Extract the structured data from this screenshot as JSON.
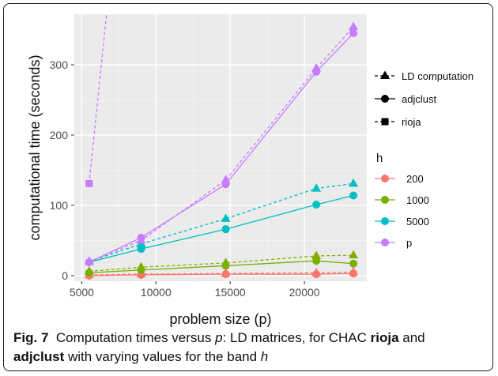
{
  "chart_data": {
    "type": "line",
    "xlabel": "problem size (p)",
    "ylabel": "computational time (seconds)",
    "xlim": [
      4500,
      24200
    ],
    "ylim": [
      -8,
      372
    ],
    "xticks": [
      5000,
      10000,
      15000,
      20000
    ],
    "yticks": [
      0,
      100,
      200,
      300
    ],
    "grid": true,
    "background": "#ebebeb",
    "legend_placement": "right",
    "method_legend": {
      "entries": [
        {
          "label": "LD computation",
          "marker": "triangle",
          "linestyle": "dashed"
        },
        {
          "label": "adjclust",
          "marker": "circle",
          "linestyle": "solid"
        },
        {
          "label": "rioja",
          "marker": "square",
          "linestyle": "dashed"
        }
      ]
    },
    "h_legend": {
      "title": "h",
      "entries": [
        {
          "label": "200",
          "color": "#f8766d"
        },
        {
          "label": "1000",
          "color": "#7cae00"
        },
        {
          "label": "5000",
          "color": "#00bfc4"
        },
        {
          "label": "p",
          "color": "#c77cff"
        }
      ]
    },
    "series": [
      {
        "h": "200",
        "method": "LD computation",
        "x": [
          5500,
          9000,
          14700,
          20800,
          23300
        ],
        "y": [
          1,
          2,
          3,
          4,
          5
        ]
      },
      {
        "h": "200",
        "method": "adjclust",
        "x": [
          5500,
          9000,
          14700,
          20800,
          23300
        ],
        "y": [
          0,
          1,
          2,
          2,
          3
        ]
      },
      {
        "h": "1000",
        "method": "LD computation",
        "x": [
          5500,
          9000,
          14700,
          20800,
          23300
        ],
        "y": [
          6,
          12,
          18,
          28,
          29
        ]
      },
      {
        "h": "1000",
        "method": "adjclust",
        "x": [
          5500,
          9000,
          14700,
          20800,
          23300
        ],
        "y": [
          4,
          8,
          14,
          21,
          17
        ]
      },
      {
        "h": "5000",
        "method": "LD computation",
        "x": [
          5500,
          9000,
          14700,
          20800,
          23300
        ],
        "y": [
          20,
          45,
          81,
          124,
          131
        ]
      },
      {
        "h": "5000",
        "method": "adjclust",
        "x": [
          5500,
          9000,
          14700,
          20800,
          23300
        ],
        "y": [
          19,
          38,
          66,
          101,
          114
        ]
      },
      {
        "h": "p",
        "method": "LD computation",
        "x": [
          5500,
          9000,
          14700,
          20800,
          23300
        ],
        "y": [
          20,
          50,
          136,
          295,
          354
        ]
      },
      {
        "h": "p",
        "method": "adjclust",
        "x": [
          5500,
          9000,
          14700,
          20800,
          23300
        ],
        "y": [
          19,
          54,
          130,
          290,
          345
        ]
      },
      {
        "h": "p",
        "method": "rioja",
        "x": [
          5500,
          7000
        ],
        "y": [
          131,
          440
        ]
      }
    ]
  },
  "caption": {
    "figure_label": "Fig. 7",
    "text_1": "Computation times versus ",
    "var_p": "p",
    "text_2": ": LD matrices, for CHAC ",
    "bold_1": "rioja",
    "text_3": " and",
    "bold_2": "adjclust",
    "text_4": " with varying values for the band ",
    "var_h": "h"
  }
}
